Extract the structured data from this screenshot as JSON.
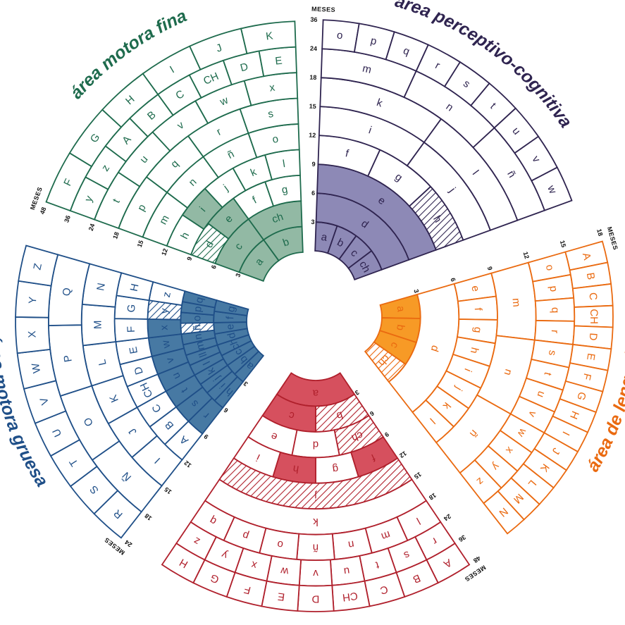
{
  "months_label": "MESES",
  "ages": [
    "3",
    "6",
    "9",
    "12",
    "15",
    "18",
    "24",
    "36",
    "48"
  ],
  "sectors": [
    {
      "id": "area-perceptivo-cognitiva",
      "title": "área perceptivo-cognitiva",
      "color": "#2f2450",
      "fill": "#8d89b6",
      "rings": [
        [
          "a",
          "b",
          "c",
          "ch"
        ],
        [
          "d"
        ],
        [
          "e"
        ],
        [
          "f",
          "g",
          "h"
        ],
        [
          "i",
          "j"
        ],
        [
          "k",
          "l"
        ],
        [
          "m",
          "n",
          "ñ"
        ],
        [
          "o",
          "p",
          "q",
          "r",
          "s",
          "t",
          "u",
          "v",
          "w"
        ]
      ],
      "filled": [
        "a",
        "b",
        "c",
        "ch",
        "d",
        "e"
      ],
      "hatched": [
        "h"
      ]
    },
    {
      "id": "area-de-lenguaje",
      "title": "área de lenguaje",
      "color": "#ea6a10",
      "fill": "#f79a26",
      "rings": [
        [
          "a",
          "b",
          "c",
          "ch"
        ],
        [
          "d"
        ],
        [
          "e",
          "f",
          "g",
          "h",
          "i",
          "j",
          "k",
          "l"
        ],
        [
          "m",
          "n",
          "ñ"
        ],
        [
          "o",
          "p",
          "q",
          "r",
          "s",
          "t",
          "u",
          "v",
          "w",
          "x",
          "y",
          "z"
        ],
        [
          "A",
          "B",
          "C",
          "CH",
          "D",
          "E",
          "F",
          "G",
          "H",
          "I",
          "J",
          "K",
          "L",
          "M",
          "N"
        ]
      ],
      "filled": [
        "a",
        "b",
        "c"
      ],
      "hatched": [
        "ch"
      ]
    },
    {
      "id": "area-social",
      "title": "área social",
      "color": "#b0202c",
      "fill": "#d6505e",
      "rings": [
        [
          "a"
        ],
        [
          "b",
          "c"
        ],
        [
          "ch",
          "d",
          "e"
        ],
        [
          "f",
          "g",
          "h",
          "i"
        ],
        [
          "j"
        ],
        [
          "k"
        ],
        [
          "l",
          "m",
          "n",
          "ñ",
          "o",
          "p",
          "q"
        ],
        [
          "r",
          "s",
          "t",
          "u",
          "v",
          "w",
          "x",
          "y",
          "z"
        ],
        [
          "A",
          "B",
          "C",
          "CH",
          "D",
          "E",
          "F",
          "G",
          "H"
        ]
      ],
      "filled": [
        "a",
        "c",
        "f",
        "h"
      ],
      "hatched": [
        "b",
        "ch",
        "j"
      ]
    },
    {
      "id": "area-motora-gruesa",
      "title": "área motora gruesa",
      "color": "#1f4f88",
      "fill": "#4779a3",
      "rings": [
        [
          "a",
          "b",
          "c",
          "ch",
          "d",
          "e",
          "f",
          "g"
        ],
        [
          "h",
          "i",
          "j",
          "k",
          "l",
          "ll",
          "m",
          "n",
          "ñ",
          "o",
          "p",
          "q"
        ],
        [
          "r",
          "s",
          "t",
          "u",
          "v",
          "w",
          "x",
          "y",
          "z"
        ],
        [
          "A",
          "B",
          "C",
          "CH",
          "D",
          "E",
          "F",
          "G",
          "H"
        ],
        [
          "I",
          "J",
          "K",
          "L",
          "M",
          "N"
        ],
        [
          "Ñ",
          "O",
          "P",
          "Q"
        ],
        [
          "R",
          "S",
          "T",
          "U",
          "V",
          "W",
          "X",
          "Y",
          "Z"
        ]
      ],
      "filled": [
        "a",
        "b",
        "c",
        "ch",
        "d",
        "e",
        "f",
        "g",
        "h",
        "i",
        "j",
        "k",
        "l",
        "ll",
        "m",
        "n",
        "o",
        "p",
        "q",
        "r",
        "s",
        "t",
        "u",
        "v",
        "w",
        "x"
      ],
      "hatched": [
        "ñ",
        "y"
      ]
    },
    {
      "id": "area-motora-fina",
      "title": "área motora fina",
      "color": "#1e6b4d",
      "fill": "#92b9a4",
      "rings": [
        [
          "a",
          "b"
        ],
        [
          "c",
          "ch"
        ],
        [
          "d",
          "e",
          "f",
          "g"
        ],
        [
          "h",
          "i",
          "j",
          "k",
          "l"
        ],
        [
          "m",
          "n",
          "ñ",
          "o"
        ],
        [
          "p",
          "q",
          "r",
          "s"
        ],
        [
          "t",
          "u",
          "v",
          "w",
          "x"
        ],
        [
          "y",
          "z",
          "A",
          "B",
          "C",
          "CH",
          "D",
          "E"
        ],
        [
          "F",
          "G",
          "H",
          "I",
          "J",
          "K"
        ]
      ],
      "filled": [
        "a",
        "b",
        "c",
        "ch",
        "e",
        "i"
      ],
      "hatched": [
        "d"
      ]
    }
  ]
}
